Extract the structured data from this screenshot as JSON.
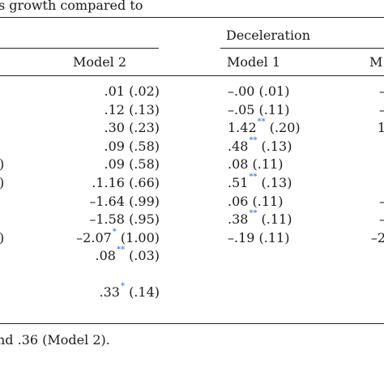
{
  "caption": "s growth compared to",
  "headers": {
    "group_right": "Deceleration",
    "col_model2": "Model 2",
    "col_decel_model1": "Model 1",
    "col_decel_model2_partial": "M"
  },
  "row_fragments": [
    ")",
    ")",
    ")"
  ],
  "rows": [
    {
      "m2": {
        "v": ".01",
        "s": "",
        "se": "(.02)"
      },
      "d1": {
        "v": "–.00",
        "s": "",
        "se": "(.01)"
      },
      "d2": "–"
    },
    {
      "m2": {
        "v": ".12",
        "s": "",
        "se": "(.13)"
      },
      "d1": {
        "v": "–.05",
        "s": "",
        "se": "(.11)"
      },
      "d2": "–"
    },
    {
      "m2": {
        "v": ".30",
        "s": "",
        "se": "(.23)"
      },
      "d1": {
        "v": "1.42",
        "s": "**",
        "se": "(.20)"
      },
      "d2": "1"
    },
    {
      "m2": {
        "v": ".09",
        "s": "",
        "se": "(.58)"
      },
      "d1": {
        "v": ".48",
        "s": "**",
        "se": "(.13)"
      },
      "d2": ""
    },
    {
      "m2": {
        "v": ".09",
        "s": "",
        "se": "(.58)"
      },
      "d1": {
        "v": ".08",
        "s": "",
        "se": "(.11)"
      },
      "d2": ""
    },
    {
      "m2": {
        "v": ".1.16",
        "s": "",
        "se": "(.66)"
      },
      "d1": {
        "v": ".51",
        "s": "**",
        "se": "(.13)"
      },
      "d2": ""
    },
    {
      "m2": {
        "v": "–1.64",
        "s": "",
        "se": "(.99)"
      },
      "d1": {
        "v": ".06",
        "s": "",
        "se": "(.11)"
      },
      "d2": "–"
    },
    {
      "m2": {
        "v": "–1.58",
        "s": "",
        "se": "(.95)"
      },
      "d1": {
        "v": ".38",
        "s": "**",
        "se": "(.11)"
      },
      "d2": "–"
    },
    {
      "m2": {
        "v": "–2.07",
        "s": "*",
        "se": "(1.00)"
      },
      "d1": {
        "v": "–.19",
        "s": "",
        "se": "(.11)"
      },
      "d2": "–2"
    },
    {
      "m2": {
        "v": ".08",
        "s": "**",
        "se": "(.03)"
      },
      "d1": null,
      "d2": ""
    },
    {
      "m2": {
        "v": ".33",
        "s": "*",
        "se": "(.14)"
      },
      "d1": null,
      "d2": ""
    }
  ],
  "footnote": "nd .36 (Model 2)."
}
